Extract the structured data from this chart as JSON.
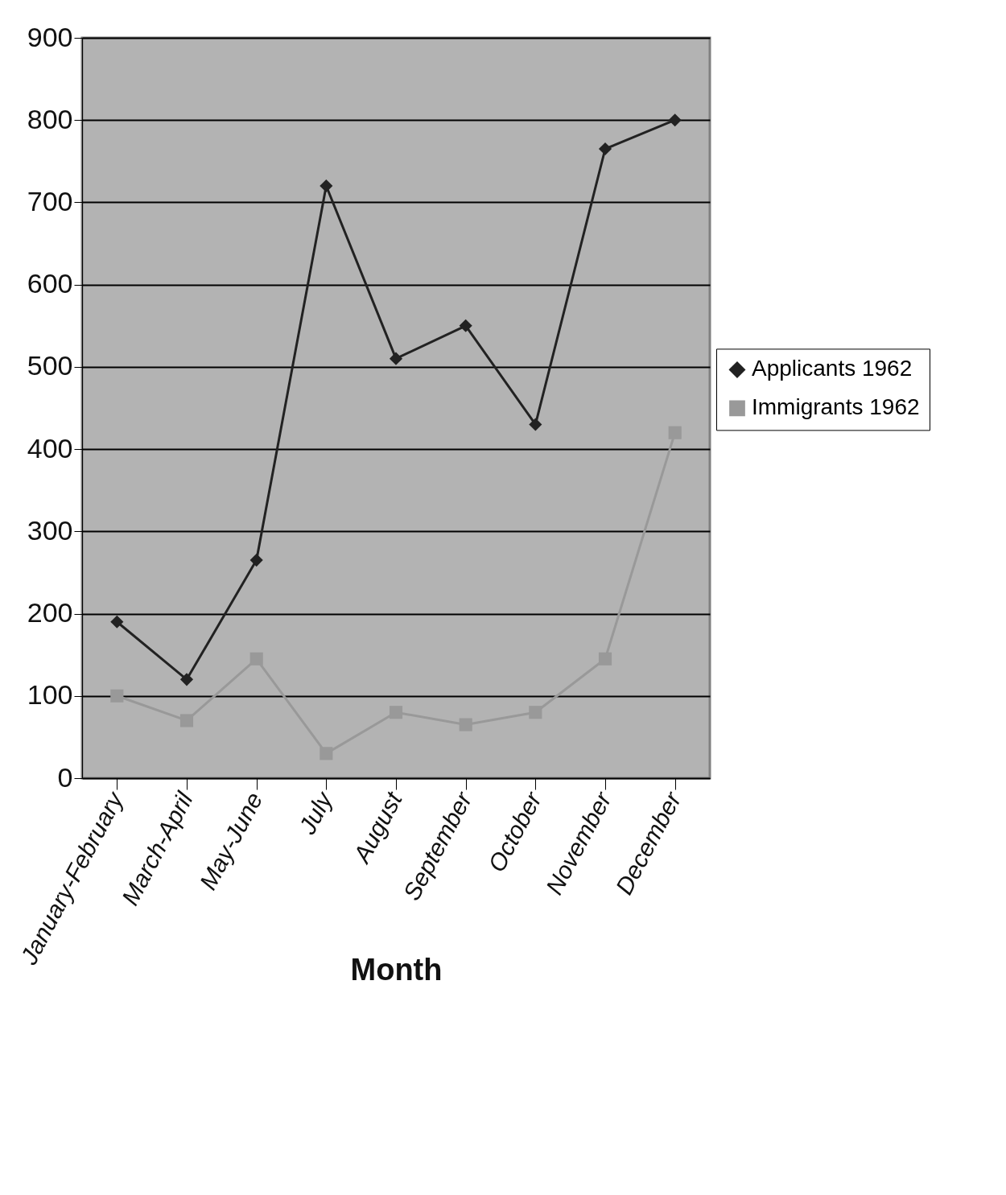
{
  "chart_data": {
    "type": "line",
    "xlabel": "Month",
    "categories": [
      "January-February",
      "March-April",
      "May-June",
      "July",
      "August",
      "September",
      "October",
      "November",
      "December"
    ],
    "series": [
      {
        "name": "Applicants 1962",
        "color": "#222222",
        "marker": "diamond",
        "values": [
          190,
          120,
          265,
          720,
          510,
          550,
          430,
          765,
          800
        ]
      },
      {
        "name": "Immigrants 1962",
        "color": "#999999",
        "marker": "square",
        "values": [
          100,
          70,
          145,
          30,
          80,
          65,
          80,
          145,
          420
        ]
      }
    ],
    "ylim": [
      0,
      900
    ],
    "yticks": [
      0,
      100,
      200,
      300,
      400,
      500,
      600,
      700,
      800,
      900
    ],
    "grid": "y",
    "legend": "right"
  }
}
